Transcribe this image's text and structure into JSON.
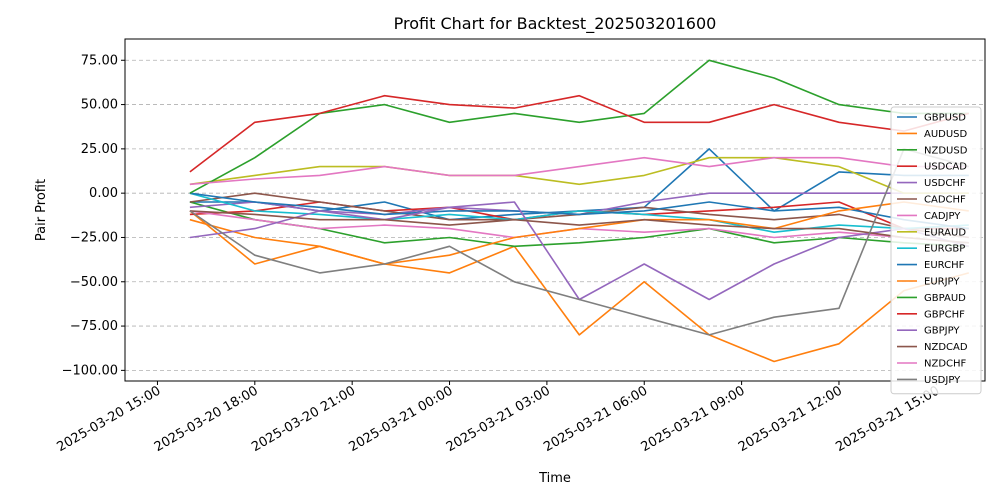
{
  "chart_data": {
    "type": "line",
    "title": "Profit Chart for Backtest_202503201600",
    "xlabel": "Time",
    "ylabel": "Pair Profit",
    "xlim": [
      "2025-03-20 14:00",
      "2025-03-21 16:30"
    ],
    "ylim": [
      -106,
      87
    ],
    "x_ticks": [
      "2025-03-20 15:00",
      "2025-03-20 18:00",
      "2025-03-20 21:00",
      "2025-03-21 00:00",
      "2025-03-21 03:00",
      "2025-03-21 06:00",
      "2025-03-21 09:00",
      "2025-03-21 12:00",
      "2025-03-21 15:00"
    ],
    "y_ticks": [
      75,
      50,
      25,
      0,
      -25,
      -50,
      -75,
      -100
    ],
    "y_tick_labels": [
      "75.00",
      "50.00",
      "25.00",
      "0.00",
      "−25.00",
      "−50.00",
      "−75.00",
      "−100.00"
    ],
    "grid": "horizontal dashed",
    "legend_position": "right",
    "x": [
      "2025-03-20 16:00",
      "2025-03-20 18:00",
      "2025-03-20 20:00",
      "2025-03-20 22:00",
      "2025-03-21 00:00",
      "2025-03-21 02:00",
      "2025-03-21 04:00",
      "2025-03-21 06:00",
      "2025-03-21 08:00",
      "2025-03-21 10:00",
      "2025-03-21 12:00",
      "2025-03-21 14:00",
      "2025-03-21 16:00"
    ],
    "series": [
      {
        "name": "GBPUSD",
        "color": "#1f77b4",
        "values": [
          -5,
          -5,
          -10,
          -5,
          -15,
          -12,
          -10,
          -8,
          25,
          -10,
          12,
          10,
          10
        ]
      },
      {
        "name": "AUDUSD",
        "color": "#ff7f0e",
        "values": [
          -10,
          -40,
          -30,
          -40,
          -45,
          -30,
          -80,
          -50,
          -80,
          -95,
          -85,
          -55,
          -45
        ]
      },
      {
        "name": "NZDUSD",
        "color": "#2ca02c",
        "values": [
          -5,
          -15,
          -20,
          -28,
          -25,
          -30,
          -28,
          -25,
          -20,
          -28,
          -25,
          -28,
          -30
        ]
      },
      {
        "name": "USDCAD",
        "color": "#d62728",
        "values": [
          -12,
          -10,
          -5,
          -10,
          -8,
          -15,
          -10,
          -12,
          -10,
          -8,
          -5,
          -20,
          -20
        ]
      },
      {
        "name": "USDCHF",
        "color": "#9467bd",
        "values": [
          -8,
          -5,
          -10,
          -12,
          -8,
          -10,
          -12,
          -5,
          0,
          0,
          0,
          0,
          0
        ]
      },
      {
        "name": "CADCHF",
        "color": "#8c564b",
        "values": [
          -5,
          0,
          -5,
          -10,
          -15,
          -15,
          -12,
          -8,
          -12,
          -15,
          -12,
          -20,
          -25
        ]
      },
      {
        "name": "CADJPY",
        "color": "#e377c2",
        "values": [
          -10,
          -15,
          -20,
          -18,
          -20,
          -25,
          -20,
          -22,
          -20,
          -25,
          -22,
          -25,
          -28
        ]
      },
      {
        "name": "EURAUD",
        "color": "#bcbd22",
        "values": [
          5,
          10,
          15,
          15,
          10,
          10,
          5,
          10,
          20,
          20,
          15,
          0,
          0
        ]
      },
      {
        "name": "EURGBP",
        "color": "#17becf",
        "values": [
          0,
          -10,
          -12,
          -15,
          -12,
          -15,
          -10,
          -12,
          -15,
          -22,
          -18,
          -20,
          -18
        ]
      },
      {
        "name": "EURCHF",
        "color": "#1f77b4",
        "values": [
          0,
          -5,
          -8,
          -12,
          -10,
          -10,
          -12,
          -10,
          -5,
          -10,
          -8,
          -15,
          -20
        ]
      },
      {
        "name": "EURJPY",
        "color": "#ff7f0e",
        "values": [
          -15,
          -25,
          -30,
          -40,
          -35,
          -25,
          -20,
          -15,
          -15,
          -20,
          -10,
          -5,
          -10
        ]
      },
      {
        "name": "GBPAUD",
        "color": "#2ca02c",
        "values": [
          0,
          20,
          45,
          50,
          40,
          45,
          40,
          45,
          75,
          65,
          50,
          45,
          45
        ]
      },
      {
        "name": "GBPCHF",
        "color": "#d62728",
        "values": [
          12,
          40,
          45,
          55,
          50,
          48,
          55,
          40,
          40,
          50,
          40,
          35,
          45
        ]
      },
      {
        "name": "GBPJPY",
        "color": "#9467bd",
        "values": [
          -25,
          -20,
          -10,
          -15,
          -8,
          -5,
          -60,
          -40,
          -60,
          -40,
          -25,
          -20,
          -30
        ]
      },
      {
        "name": "NZDCAD",
        "color": "#8c564b",
        "values": [
          -10,
          -12,
          -15,
          -15,
          -18,
          -15,
          -18,
          -15,
          -18,
          -20,
          -20,
          -25,
          -28
        ]
      },
      {
        "name": "NZDCHF",
        "color": "#e377c2",
        "values": [
          5,
          8,
          10,
          15,
          10,
          10,
          15,
          20,
          15,
          20,
          20,
          15,
          15
        ]
      },
      {
        "name": "USDJPY",
        "color": "#7f7f7f",
        "values": [
          -10,
          -35,
          -45,
          -40,
          -30,
          -50,
          -60,
          -70,
          -80,
          -70,
          -65,
          25,
          15
        ]
      }
    ]
  }
}
